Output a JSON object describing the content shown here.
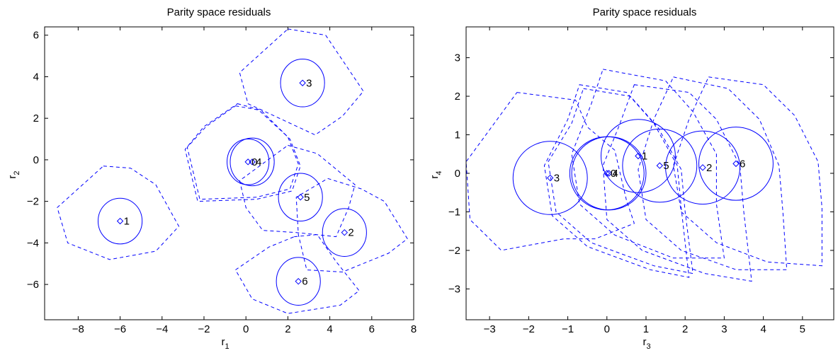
{
  "chart_data": [
    {
      "type": "scatter",
      "title": "Parity space residuals",
      "xlabel": "r",
      "xlabel_sub": "1",
      "ylabel": "r",
      "ylabel_sub": "2",
      "xlim": [
        -9.6,
        8.0
      ],
      "ylim": [
        -7.7,
        6.4
      ],
      "xticks": [
        -8,
        -6,
        -4,
        -2,
        0,
        2,
        4,
        6,
        8
      ],
      "yticks": [
        -6,
        -4,
        -2,
        0,
        2,
        4,
        6
      ],
      "color": "#0000ff",
      "points": [
        {
          "label": "1",
          "x": -6.0,
          "y": -2.95,
          "ellipse": {
            "rx": 1.05,
            "ry": 1.1
          },
          "region": [
            [
              -6.8,
              -0.3
            ],
            [
              -5.5,
              -0.4
            ],
            [
              -4.3,
              -1.2
            ],
            [
              -3.2,
              -3.2
            ],
            [
              -4.3,
              -4.4
            ],
            [
              -6.5,
              -4.8
            ],
            [
              -8.5,
              -4.0
            ],
            [
              -9.0,
              -2.3
            ]
          ]
        },
        {
          "label": "2",
          "x": 4.7,
          "y": -3.5,
          "ellipse": {
            "rx": 1.05,
            "ry": 1.15
          },
          "region": [
            [
              3.9,
              -0.9
            ],
            [
              5.5,
              -1.4
            ],
            [
              6.6,
              -2.0
            ],
            [
              7.7,
              -3.8
            ],
            [
              6.8,
              -4.5
            ],
            [
              4.6,
              -5.4
            ],
            [
              2.9,
              -5.3
            ],
            [
              2.5,
              -3.6
            ],
            [
              2.4,
              -1.8
            ]
          ]
        },
        {
          "label": "3",
          "x": 2.7,
          "y": 3.7,
          "ellipse": {
            "rx": 1.05,
            "ry": 1.15
          },
          "region": [
            [
              2.0,
              6.3
            ],
            [
              3.8,
              6.0
            ],
            [
              5.6,
              3.3
            ],
            [
              4.6,
              2.1
            ],
            [
              3.3,
              1.2
            ],
            [
              0.1,
              2.7
            ],
            [
              -0.3,
              4.2
            ]
          ]
        },
        {
          "label": "4",
          "x": 0.3,
          "y": -0.1,
          "ellipse": {
            "rx": 1.05,
            "ry": 1.15
          },
          "region": [
            [
              -0.4,
              2.7
            ],
            [
              0.7,
              2.4
            ],
            [
              2.1,
              1.0
            ],
            [
              2.6,
              -0.3
            ],
            [
              2.2,
              -1.5
            ],
            [
              0.5,
              -1.9
            ],
            [
              -2.3,
              -2.0
            ],
            [
              -2.9,
              0.5
            ],
            [
              -2.0,
              1.6
            ]
          ]
        },
        {
          "label": "5",
          "x": 2.6,
          "y": -1.8,
          "ellipse": {
            "rx": 1.05,
            "ry": 1.15
          },
          "region": [
            [
              2.0,
              0.7
            ],
            [
              3.4,
              0.3
            ],
            [
              5.2,
              -1.2
            ],
            [
              4.9,
              -2.3
            ],
            [
              4.3,
              -3.7
            ],
            [
              2.4,
              -3.5
            ],
            [
              0.8,
              -3.4
            ],
            [
              0.0,
              -2.3
            ],
            [
              -0.3,
              -1.0
            ]
          ]
        },
        {
          "label": "6",
          "x": 2.5,
          "y": -5.85,
          "ellipse": {
            "rx": 1.05,
            "ry": 1.15
          },
          "region": [
            [
              2.3,
              -3.7
            ],
            [
              3.4,
              -3.6
            ],
            [
              4.3,
              -4.9
            ],
            [
              5.4,
              -6.3
            ],
            [
              4.5,
              -7.0
            ],
            [
              2.0,
              -7.4
            ],
            [
              0.3,
              -6.7
            ],
            [
              -0.5,
              -5.3
            ],
            [
              1.1,
              -4.2
            ]
          ]
        },
        {
          "label": "0",
          "x": 0.1,
          "y": -0.1,
          "ellipse": {
            "rx": 1.0,
            "ry": 1.1
          },
          "region": [
            [
              -0.5,
              2.6
            ],
            [
              0.6,
              2.4
            ],
            [
              2.0,
              1.1
            ],
            [
              2.5,
              -0.2
            ],
            [
              2.1,
              -1.4
            ],
            [
              0.5,
              -1.8
            ],
            [
              -2.2,
              -1.9
            ],
            [
              -2.8,
              0.6
            ],
            [
              -1.9,
              1.6
            ]
          ]
        }
      ]
    },
    {
      "type": "scatter",
      "title": "Parity space residuals",
      "xlabel": "r",
      "xlabel_sub": "3",
      "ylabel": "r",
      "ylabel_sub": "4",
      "xlim": [
        -3.6,
        5.8
      ],
      "ylim": [
        -3.8,
        3.8
      ],
      "xticks": [
        -3,
        -2,
        -1,
        0,
        1,
        2,
        3,
        4,
        5
      ],
      "yticks": [
        -3,
        -2,
        -1,
        0,
        1,
        2,
        3
      ],
      "color": "#0000ff",
      "points": [
        {
          "label": "3",
          "x": -1.45,
          "y": -0.12,
          "ellipse": {
            "rx": 0.95,
            "ry": 0.95
          },
          "region": [
            [
              -2.3,
              2.1
            ],
            [
              -0.8,
              1.9
            ],
            [
              -0.5,
              1.2
            ],
            [
              0.2,
              0.6
            ],
            [
              0.5,
              -0.7
            ],
            [
              0.7,
              -1.3
            ],
            [
              -0.3,
              -1.7
            ],
            [
              -1.1,
              -1.7
            ],
            [
              -2.7,
              -2.0
            ],
            [
              -3.5,
              -1.2
            ],
            [
              -3.6,
              0.3
            ]
          ]
        },
        {
          "label": "4",
          "x": 0.05,
          "y": 0.0,
          "ellipse": {
            "rx": 0.95,
            "ry": 0.95
          },
          "region": [
            [
              -0.6,
              2.2
            ],
            [
              0.6,
              2.0
            ],
            [
              1.3,
              1.2
            ],
            [
              1.9,
              0.1
            ],
            [
              2.0,
              -1.0
            ],
            [
              2.2,
              -2.6
            ],
            [
              1.2,
              -2.4
            ],
            [
              -0.4,
              -1.8
            ],
            [
              -1.3,
              -1.0
            ],
            [
              -1.5,
              0.3
            ],
            [
              -0.9,
              1.3
            ]
          ]
        },
        {
          "label": "0",
          "x": 0.0,
          "y": 0.0,
          "ellipse": {
            "rx": 0.95,
            "ry": 0.95
          },
          "region": [
            [
              -0.7,
              2.3
            ],
            [
              0.5,
              2.1
            ],
            [
              1.2,
              1.3
            ],
            [
              1.8,
              0.2
            ],
            [
              1.9,
              -0.9
            ],
            [
              2.1,
              -2.7
            ],
            [
              1.1,
              -2.5
            ],
            [
              -0.5,
              -1.9
            ],
            [
              -1.4,
              -1.1
            ],
            [
              -1.6,
              0.2
            ],
            [
              -1.0,
              1.4
            ]
          ]
        },
        {
          "label": "1",
          "x": 0.8,
          "y": 0.45,
          "ellipse": {
            "rx": 0.95,
            "ry": 0.95
          },
          "region": [
            [
              -0.1,
              2.7
            ],
            [
              1.5,
              2.4
            ],
            [
              2.2,
              1.6
            ],
            [
              2.8,
              0.5
            ],
            [
              2.8,
              -0.8
            ],
            [
              3.0,
              -2.2
            ],
            [
              1.7,
              -2.2
            ],
            [
              0.2,
              -1.6
            ],
            [
              -0.7,
              -0.8
            ],
            [
              -0.9,
              0.5
            ],
            [
              -0.4,
              1.8
            ]
          ]
        },
        {
          "label": "5",
          "x": 1.35,
          "y": 0.2,
          "ellipse": {
            "rx": 0.95,
            "ry": 0.95
          },
          "region": [
            [
              0.7,
              2.3
            ],
            [
              2.1,
              2.1
            ],
            [
              2.8,
              1.4
            ],
            [
              3.4,
              0.2
            ],
            [
              3.5,
              -1.0
            ],
            [
              3.7,
              -2.8
            ],
            [
              2.5,
              -2.6
            ],
            [
              0.9,
              -2.0
            ],
            [
              0.0,
              -1.2
            ],
            [
              -0.1,
              0.2
            ],
            [
              0.3,
              1.2
            ]
          ]
        },
        {
          "label": "2",
          "x": 2.45,
          "y": 0.15,
          "ellipse": {
            "rx": 0.95,
            "ry": 0.95
          },
          "region": [
            [
              1.7,
              2.5
            ],
            [
              3.1,
              2.2
            ],
            [
              3.9,
              1.4
            ],
            [
              4.4,
              0.2
            ],
            [
              4.5,
              -1.0
            ],
            [
              4.6,
              -2.5
            ],
            [
              3.3,
              -2.5
            ],
            [
              1.9,
              -2.0
            ],
            [
              1.0,
              -1.2
            ],
            [
              0.8,
              0.1
            ],
            [
              1.2,
              1.4
            ]
          ]
        },
        {
          "label": "6",
          "x": 3.3,
          "y": 0.25,
          "ellipse": {
            "rx": 0.95,
            "ry": 0.95
          },
          "region": [
            [
              2.6,
              2.5
            ],
            [
              4.0,
              2.3
            ],
            [
              4.8,
              1.5
            ],
            [
              5.4,
              0.3
            ],
            [
              5.5,
              -0.9
            ],
            [
              5.5,
              -2.4
            ],
            [
              4.1,
              -2.3
            ],
            [
              2.8,
              -1.8
            ],
            [
              1.9,
              -1.0
            ],
            [
              1.7,
              0.2
            ],
            [
              2.1,
              1.4
            ]
          ]
        }
      ]
    }
  ]
}
